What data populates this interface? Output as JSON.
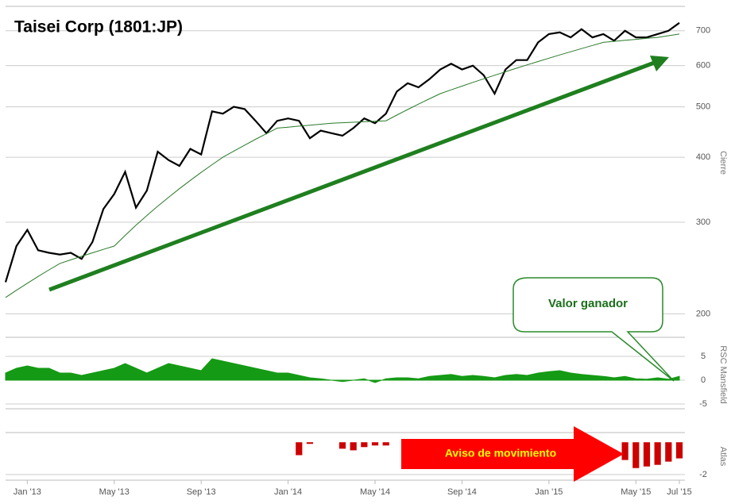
{
  "chart_data": [
    {
      "type": "line",
      "title": "Taisei Corp (1801:JP)",
      "y_label": "Cierre",
      "log_scale": true,
      "categories": [
        null,
        null,
        "Jan '13",
        null,
        null,
        null,
        null,
        null,
        null,
        null,
        "May '13",
        null,
        null,
        null,
        null,
        null,
        null,
        null,
        "Sep '13",
        null,
        null,
        null,
        null,
        null,
        null,
        null,
        "Jan '14",
        null,
        null,
        null,
        null,
        null,
        null,
        null,
        "May '14",
        null,
        null,
        null,
        null,
        null,
        null,
        null,
        "Sep '14",
        null,
        null,
        null,
        null,
        null,
        null,
        null,
        "Jan '15",
        null,
        null,
        null,
        null,
        null,
        null,
        null,
        "May '15",
        null,
        null,
        null,
        "Jul '15"
      ],
      "series": [
        {
          "color": "#000000",
          "values": [
            230,
            270,
            290,
            265,
            262,
            260,
            262,
            255,
            275,
            318,
            340,
            375,
            320,
            345,
            410,
            395,
            385,
            415,
            405,
            490,
            485,
            500,
            495,
            470,
            445,
            470,
            475,
            470,
            435,
            450,
            445,
            440,
            455,
            475,
            465,
            485,
            535,
            555,
            545,
            565,
            590,
            605,
            590,
            600,
            575,
            530,
            590,
            615,
            615,
            665,
            690,
            695,
            680,
            705,
            680,
            690,
            670,
            700,
            680,
            680,
            690,
            700,
            725
          ]
        },
        {
          "color": "#2a7a2a",
          "values": [
            215,
            222,
            229,
            236,
            243,
            250,
            254,
            258,
            262,
            266,
            270,
            283,
            296,
            309,
            322,
            335,
            348,
            361,
            374,
            387,
            400,
            411,
            422,
            433,
            444,
            455,
            457,
            459,
            461,
            463,
            465,
            466,
            467,
            468,
            469,
            470,
            482,
            494,
            506,
            518,
            530,
            539,
            548,
            557,
            566,
            575,
            584,
            593,
            602,
            611,
            620,
            629,
            638,
            647,
            656,
            665,
            668,
            671,
            674,
            677,
            680,
            685,
            690
          ]
        }
      ],
      "ylim": [
        190,
        780
      ],
      "yticks": [
        200,
        300,
        400,
        500,
        600,
        700
      ],
      "grid": true,
      "annotation": "Valor ganador"
    },
    {
      "type": "area",
      "y_label": "RSC Mansfield",
      "color": "#159a15",
      "values": [
        1.5,
        2.5,
        3,
        2.5,
        2.5,
        1.5,
        1.5,
        1,
        1.5,
        2,
        2.5,
        3.5,
        2.5,
        1.5,
        2.5,
        3.5,
        3,
        2.5,
        2,
        4.5,
        4,
        3.5,
        3,
        2.5,
        2,
        1.5,
        1.5,
        1,
        0.5,
        0.3,
        0,
        -0.3,
        0,
        0.3,
        -0.5,
        0.3,
        0.5,
        0.5,
        0.3,
        0.8,
        1,
        1.2,
        0.8,
        1,
        0.8,
        0.5,
        1,
        1.2,
        1,
        1.5,
        1.8,
        2,
        1.5,
        1.2,
        1,
        0.8,
        0.5,
        0.8,
        0.3,
        0.2,
        0.5,
        0.2,
        0.8
      ],
      "ylim": [
        -6,
        9
      ],
      "yticks": [
        5,
        0,
        -5
      ],
      "grid": true
    },
    {
      "type": "bar",
      "y_label": "Atlas",
      "color": "#cc0000",
      "values": [
        null,
        null,
        null,
        null,
        null,
        null,
        null,
        null,
        null,
        null,
        null,
        null,
        null,
        null,
        null,
        null,
        null,
        null,
        null,
        null,
        null,
        null,
        null,
        null,
        null,
        null,
        null,
        -0.8,
        -0.1,
        null,
        null,
        -0.4,
        -0.5,
        -0.3,
        -0.2,
        -0.2,
        null,
        null,
        null,
        null,
        null,
        null,
        null,
        null,
        null,
        null,
        null,
        null,
        null,
        null,
        null,
        null,
        null,
        null,
        null,
        null,
        null,
        -1.1,
        -1.6,
        -1.5,
        -1.4,
        -1.2,
        -1.0
      ],
      "ylim": [
        -2.35,
        0.6
      ],
      "yticks": [
        -2
      ],
      "grid": true,
      "annotation": "Aviso de movimiento"
    }
  ]
}
